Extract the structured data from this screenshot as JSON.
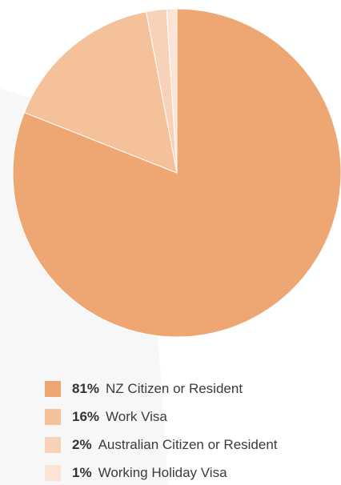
{
  "chart_data": {
    "type": "pie",
    "title": "",
    "slices": [
      {
        "label": "NZ Citizen or Resident",
        "value": 81,
        "display": "81%",
        "color": "#eea672"
      },
      {
        "label": "Work Visa",
        "value": 16,
        "display": "16%",
        "color": "#f4c19b"
      },
      {
        "label": "Australian Citizen or Resident",
        "value": 2,
        "display": "2%",
        "color": "#f8d2b8"
      },
      {
        "label": "Working Holiday Visa",
        "value": 1,
        "display": "1%",
        "color": "#fbe4d6"
      }
    ],
    "start_angle_deg": 0,
    "direction": "clockwise",
    "legend_position": "bottom"
  },
  "colors": {
    "background": "#ffffff",
    "background_shape": "#f7f7f7",
    "slice_border": "#ffffff"
  }
}
